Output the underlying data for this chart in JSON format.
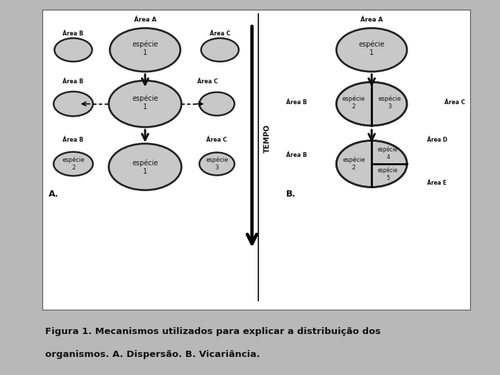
{
  "bg_color": "#b8b8b8",
  "panel_bg": "#ffffff",
  "panel_border": "#555555",
  "ellipse_fill": "#c8c8c8",
  "ellipse_edge": "#222222",
  "arrow_color": "#111111",
  "text_color": "#111111",
  "caption_line1": "Figura 1. Mecanismos utilizados para explicar a distribuição dos",
  "caption_line2": "organismos. A. Dispersão. B. Vicariância.",
  "caption_fontsize": 9.5,
  "tempo_text": "TEMPO"
}
